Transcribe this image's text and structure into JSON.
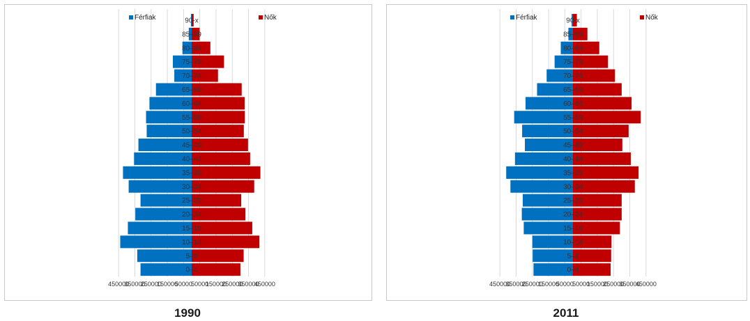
{
  "colors": {
    "male": "#0070C0",
    "female": "#C00000",
    "grid": "#d9d9d9",
    "axis_text": "#333333"
  },
  "chart_data": [
    {
      "type": "bar",
      "orientation": "horizontal-population-pyramid",
      "title": "1990",
      "legend": {
        "placement": "top",
        "male_label": "Férfiak",
        "female_label": "Nők"
      },
      "categories": [
        "0–4",
        "5–9",
        "10–14",
        "15–19",
        "20–24",
        "25–29",
        "30–34",
        "35–39",
        "40–44",
        "45–49",
        "50–54",
        "55–59",
        "60–64",
        "65–69",
        "70–74",
        "75–79",
        "80–84",
        "85–89",
        "90-x"
      ],
      "series": [
        {
          "name": "Férfiak",
          "values": [
            315000,
            335000,
            440000,
            393000,
            347000,
            315000,
            388000,
            423000,
            355000,
            328000,
            277000,
            281000,
            260000,
            220000,
            107000,
            116000,
            57000,
            18000,
            4000
          ]
        },
        {
          "name": "Nők",
          "values": [
            300000,
            320000,
            417000,
            373000,
            331000,
            305000,
            385000,
            423000,
            360000,
            347000,
            321000,
            327000,
            326000,
            308000,
            162000,
            199000,
            115000,
            49000,
            12000
          ]
        }
      ],
      "xtick_labels": [
        "450000",
        "350000",
        "250000",
        "150000",
        "50000",
        "50000",
        "150000",
        "250000",
        "350000",
        "450000"
      ],
      "xlim": [
        -500000,
        500000
      ],
      "grid": true
    },
    {
      "type": "bar",
      "orientation": "horizontal-population-pyramid",
      "title": "2011",
      "legend": {
        "placement": "top",
        "male_label": "Férfiak",
        "female_label": "Nők"
      },
      "categories": [
        "0–4",
        "5–9",
        "10–14",
        "15–19",
        "20–24",
        "25–29",
        "30–34",
        "35–39",
        "40–44",
        "45–49",
        "50–54",
        "55–59",
        "60–64",
        "65–69",
        "70–74",
        "75–79",
        "80–84",
        "85–89",
        "90-x"
      ],
      "series": [
        {
          "name": "Férfiak",
          "values": [
            243000,
            248000,
            250000,
            303000,
            315000,
            309000,
            385000,
            411000,
            357000,
            296000,
            313000,
            362000,
            292000,
            221000,
            162000,
            113000,
            75000,
            28000,
            8000
          ]
        },
        {
          "name": "Nők",
          "values": [
            232000,
            235000,
            237000,
            289000,
            300000,
            300000,
            381000,
            404000,
            356000,
            304000,
            343000,
            417000,
            361000,
            300000,
            259000,
            216000,
            162000,
            89000,
            24000
          ]
        }
      ],
      "xtick_labels": [
        "450000",
        "350000",
        "250000",
        "150000",
        "50000",
        "50000",
        "150000",
        "250000",
        "350000",
        "450000"
      ],
      "xlim": [
        -500000,
        500000
      ],
      "grid": true
    }
  ]
}
